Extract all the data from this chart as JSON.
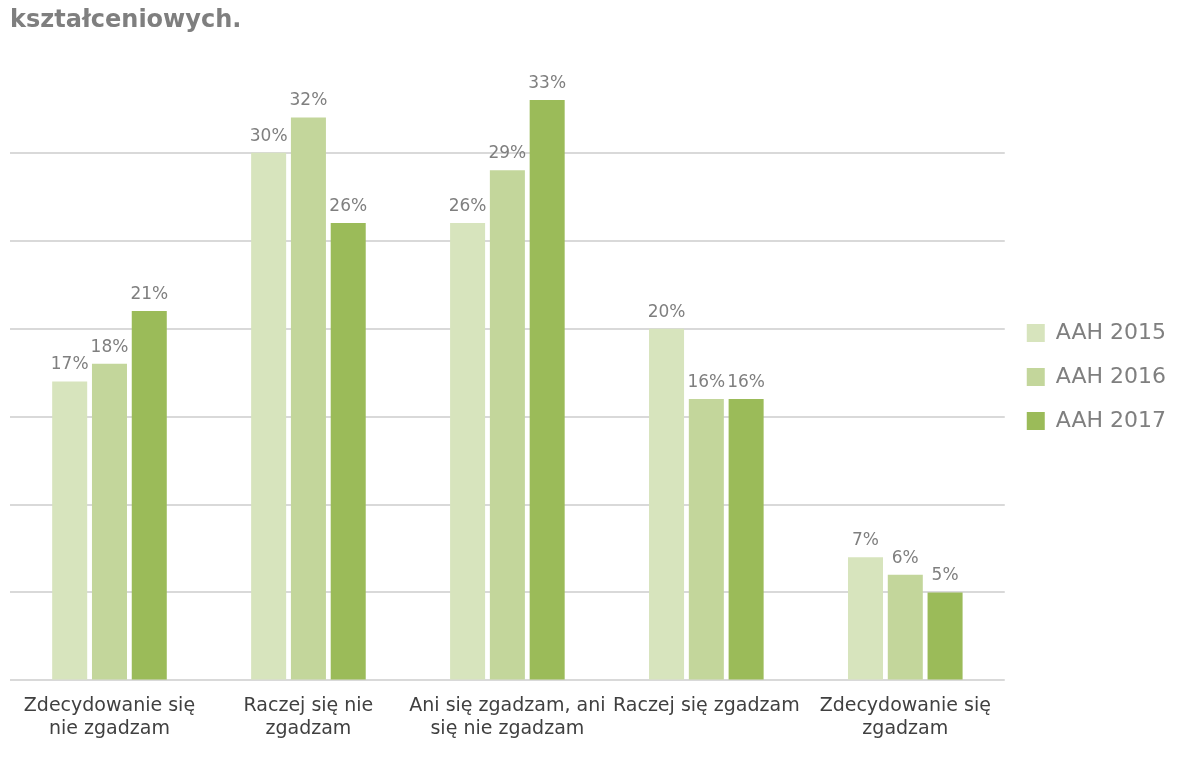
{
  "chart_data": {
    "type": "bar",
    "title": "kształceniowych.",
    "categories": [
      "Zdecydowanie się nie zgadzam",
      "Raczej się nie zgadzam",
      "Ani się zgadzam, ani się nie zgadzam",
      "Raczej się zgadzam",
      "Zdecydowanie się zgadzam"
    ],
    "series": [
      {
        "name": "AAH 2015",
        "color": "#d7e4bd",
        "values": [
          17,
          30,
          26,
          20,
          7
        ],
        "value_labels": [
          "17%",
          "30%",
          "26%",
          "20%",
          "7%"
        ]
      },
      {
        "name": "AAH 2016",
        "color": "#c3d69b",
        "values": [
          18,
          32,
          29,
          16,
          6
        ],
        "value_labels": [
          "18%",
          "32%",
          "29%",
          "16%",
          "6%"
        ]
      },
      {
        "name": "AAH 2017",
        "color": "#9bbb59",
        "values": [
          21,
          26,
          33,
          16,
          5
        ],
        "value_labels": [
          "21%",
          "26%",
          "33%",
          "16%",
          "5%"
        ]
      }
    ],
    "yticks": [
      0,
      {
        "value": 5,
        "label": null
      },
      {
        "value": 10,
        "label": null
      },
      {
        "value": 15,
        "label": null
      },
      {
        "value": 20,
        "label": null
      },
      {
        "value": 25,
        "label": null
      },
      {
        "value": 30,
        "label": null
      }
    ],
    "grid": "y",
    "legend": "right",
    "tick_labels": "x"
  }
}
